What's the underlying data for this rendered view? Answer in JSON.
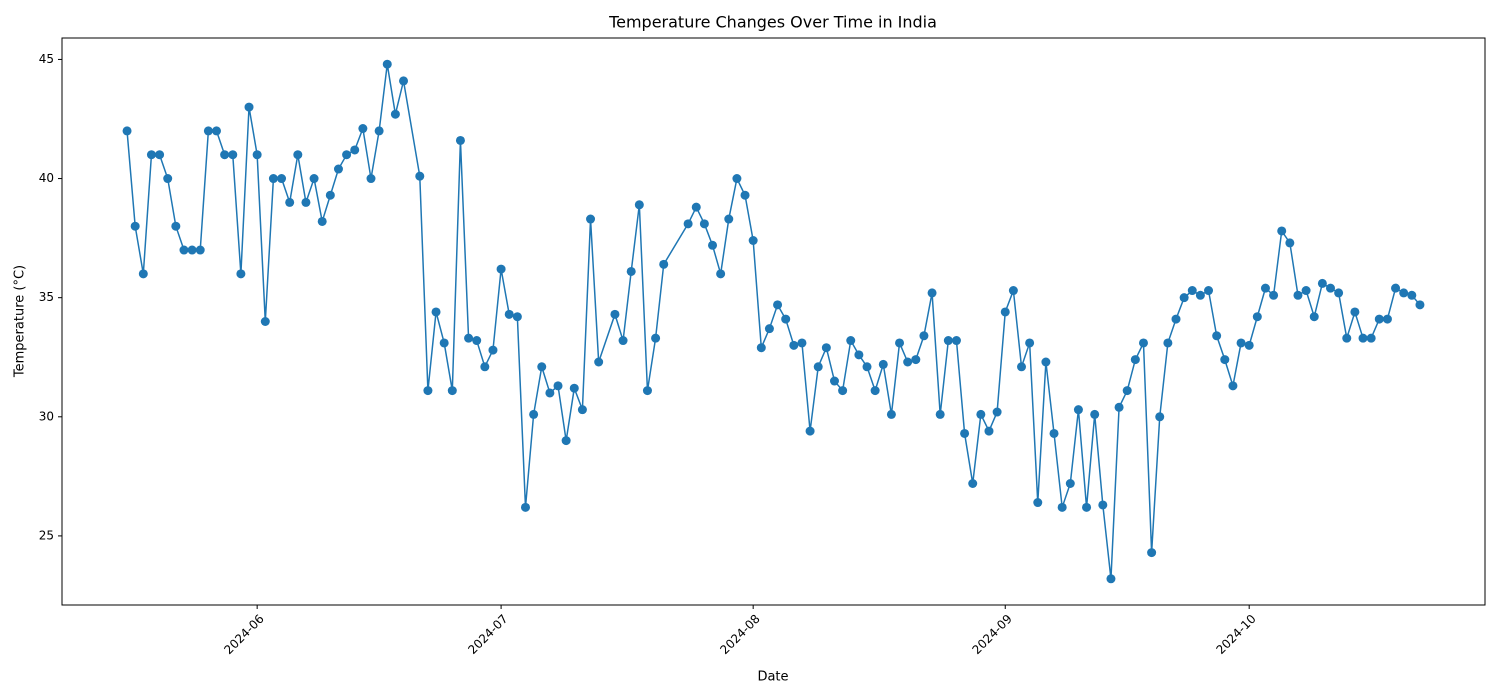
{
  "chart_data": {
    "type": "line",
    "title": "Temperature Changes Over Time in India",
    "xlabel": "Date",
    "ylabel": "Temperature (°C)",
    "x": [
      "2024-05-16",
      "2024-05-17",
      "2024-05-18",
      "2024-05-19",
      "2024-05-20",
      "2024-05-21",
      "2024-05-22",
      "2024-05-23",
      "2024-05-24",
      "2024-05-25",
      "2024-05-26",
      "2024-05-27",
      "2024-05-28",
      "2024-05-29",
      "2024-05-30",
      "2024-05-31",
      "2024-06-01",
      "2024-06-02",
      "2024-06-03",
      "2024-06-04",
      "2024-06-05",
      "2024-06-06",
      "2024-06-07",
      "2024-06-08",
      "2024-06-09",
      "2024-06-10",
      "2024-06-11",
      "2024-06-12",
      "2024-06-13",
      "2024-06-14",
      "2024-06-15",
      "2024-06-16",
      "2024-06-17",
      "2024-06-18",
      "2024-06-19",
      "2024-06-21",
      "2024-06-22",
      "2024-06-23",
      "2024-06-24",
      "2024-06-25",
      "2024-06-26",
      "2024-06-27",
      "2024-06-28",
      "2024-06-29",
      "2024-06-30",
      "2024-07-01",
      "2024-07-02",
      "2024-07-03",
      "2024-07-04",
      "2024-07-05",
      "2024-07-06",
      "2024-07-07",
      "2024-07-08",
      "2024-07-09",
      "2024-07-10",
      "2024-07-11",
      "2024-07-12",
      "2024-07-13",
      "2024-07-15",
      "2024-07-16",
      "2024-07-17",
      "2024-07-18",
      "2024-07-19",
      "2024-07-20",
      "2024-07-21",
      "2024-07-24",
      "2024-07-25",
      "2024-07-26",
      "2024-07-27",
      "2024-07-28",
      "2024-07-29",
      "2024-07-30",
      "2024-07-31",
      "2024-08-01",
      "2024-08-02",
      "2024-08-03",
      "2024-08-04",
      "2024-08-05",
      "2024-08-06",
      "2024-08-07",
      "2024-08-08",
      "2024-08-09",
      "2024-08-10",
      "2024-08-11",
      "2024-08-12",
      "2024-08-13",
      "2024-08-14",
      "2024-08-15",
      "2024-08-16",
      "2024-08-17",
      "2024-08-18",
      "2024-08-19",
      "2024-08-20",
      "2024-08-21",
      "2024-08-22",
      "2024-08-23",
      "2024-08-24",
      "2024-08-25",
      "2024-08-26",
      "2024-08-27",
      "2024-08-28",
      "2024-08-29",
      "2024-08-30",
      "2024-08-31",
      "2024-09-01",
      "2024-09-02",
      "2024-09-03",
      "2024-09-04",
      "2024-09-05",
      "2024-09-06",
      "2024-09-07",
      "2024-09-08",
      "2024-09-09",
      "2024-09-10",
      "2024-09-11",
      "2024-09-12",
      "2024-09-13",
      "2024-09-14",
      "2024-09-15",
      "2024-09-16",
      "2024-09-17",
      "2024-09-18",
      "2024-09-19",
      "2024-09-20",
      "2024-09-21",
      "2024-09-22",
      "2024-09-23",
      "2024-09-24",
      "2024-09-25",
      "2024-09-26",
      "2024-09-27",
      "2024-09-28",
      "2024-09-29",
      "2024-09-30",
      "2024-10-01",
      "2024-10-02",
      "2024-10-03",
      "2024-10-04",
      "2024-10-05",
      "2024-10-06",
      "2024-10-07",
      "2024-10-08",
      "2024-10-09",
      "2024-10-10",
      "2024-10-11",
      "2024-10-12",
      "2024-10-13",
      "2024-10-14",
      "2024-10-15",
      "2024-10-16",
      "2024-10-17",
      "2024-10-18",
      "2024-10-19",
      "2024-10-20",
      "2024-10-21",
      "2024-10-22"
    ],
    "values": [
      42,
      38,
      36,
      41,
      41,
      40,
      38,
      37,
      37,
      37,
      42,
      42,
      41,
      41,
      36,
      43,
      41,
      34,
      40,
      40,
      39,
      41,
      39,
      40,
      38.2,
      39.3,
      40.4,
      41,
      41.2,
      42.1,
      40,
      42,
      44.8,
      42.7,
      44.1,
      40.1,
      31.1,
      34.4,
      33.1,
      31.1,
      41.6,
      33.3,
      33.2,
      32.1,
      32.8,
      36.2,
      34.3,
      34.2,
      26.2,
      30.1,
      32.1,
      31,
      31.3,
      29,
      31.2,
      30.3,
      38.3,
      32.3,
      34.3,
      33.2,
      36.1,
      38.9,
      31.1,
      33.3,
      36.4,
      38.1,
      38.8,
      38.1,
      37.2,
      36,
      38.3,
      40,
      39.3,
      37.4,
      32.9,
      33.7,
      34.7,
      34.1,
      33,
      33.1,
      29.4,
      32.1,
      32.9,
      31.5,
      31.1,
      33.2,
      32.6,
      32.1,
      31.1,
      32.2,
      30.1,
      33.1,
      32.3,
      32.4,
      33.4,
      35.2,
      30.1,
      33.2,
      33.2,
      29.3,
      27.2,
      30.1,
      29.4,
      30.2,
      34.4,
      35.3,
      32.1,
      33.1,
      26.4,
      32.3,
      29.3,
      26.2,
      27.2,
      30.3,
      26.2,
      30.1,
      26.3,
      23.2,
      30.4,
      31.1,
      32.4,
      33.1,
      24.3,
      30,
      33.1,
      34.1,
      35,
      35.3,
      35.1,
      35.3,
      33.4,
      32.4,
      31.3,
      33.1,
      33,
      34.2,
      35.4,
      35.1,
      37.8,
      37.3,
      35.1,
      35.3,
      34.2,
      35.6,
      35.4,
      35.2,
      33.3,
      34.4,
      33.3,
      33.3,
      34.1,
      34.1,
      35.4,
      35.2,
      35.1,
      34.7
    ],
    "color": "#1f77b4",
    "xlim": [
      "2024-05-08",
      "2024-10-30"
    ],
    "xticks": [
      {
        "value": "2024-06-01",
        "label": "2024-06"
      },
      {
        "value": "2024-07-01",
        "label": "2024-07"
      },
      {
        "value": "2024-08-01",
        "label": "2024-08"
      },
      {
        "value": "2024-09-01",
        "label": "2024-09"
      },
      {
        "value": "2024-10-01",
        "label": "2024-10"
      }
    ],
    "ylim": [
      22.1,
      45.9
    ],
    "yticks": [
      25,
      30,
      35,
      40,
      45
    ],
    "grid": false,
    "markers": true
  }
}
